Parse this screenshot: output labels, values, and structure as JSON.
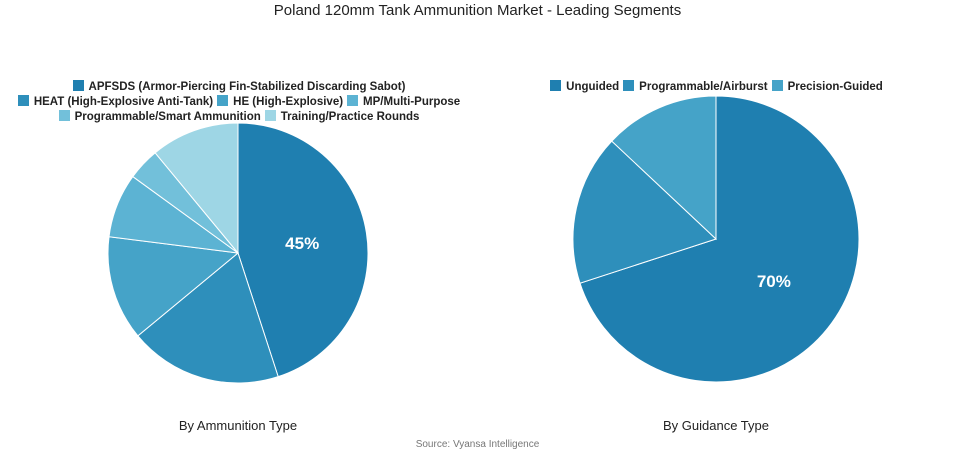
{
  "title": "Poland 120mm Tank Ammunition Market - Leading Segments",
  "source": "Source: Vyansa Intelligence",
  "chart_data": [
    {
      "type": "pie",
      "subtitle": "By Ammunition Type",
      "legend_position": "top",
      "categories": [
        "APFSDS (Armor-Piercing Fin-Stabilized Discarding Sabot)",
        "HEAT (High-Explosive Anti-Tank)",
        "HE (High-Explosive)",
        "MP/Multi-Purpose",
        "Programmable/Smart Ammunition",
        "Training/Practice Rounds"
      ],
      "values": [
        45,
        19,
        13,
        8,
        4,
        11
      ],
      "colors": [
        "#1f7fb0",
        "#2e8fbb",
        "#45a3c8",
        "#5cb3d3",
        "#72c0da",
        "#9ed6e5"
      ],
      "data_labels": [
        "45%",
        "",
        "",
        "",
        "",
        ""
      ]
    },
    {
      "type": "pie",
      "subtitle": "By Guidance Type",
      "legend_position": "top",
      "categories": [
        "Unguided",
        "Programmable/Airburst",
        "Precision-Guided"
      ],
      "values": [
        70,
        17,
        13
      ],
      "colors": [
        "#1f7fb0",
        "#2e8fbb",
        "#45a3c8"
      ],
      "data_labels": [
        "70%",
        "",
        ""
      ]
    }
  ]
}
